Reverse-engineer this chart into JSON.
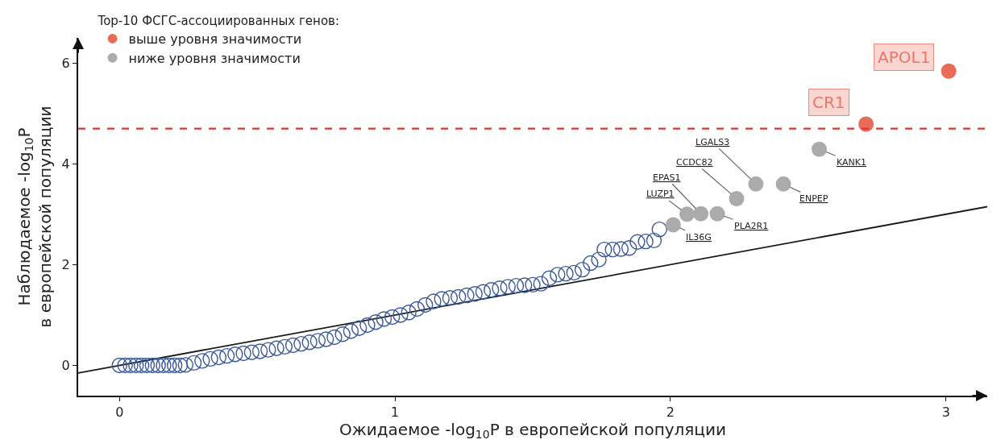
{
  "chart_data": {
    "type": "scatter",
    "xlabel": "Ожидаемое -log$_{10}$P в европейской популяции",
    "ylabel": "Наблюдаемое -log$_{10}$P\nв европейской популяции",
    "legend_title": "Top-10 ФСГС-ассоциированных генов:",
    "legend": "top left",
    "marker": "circle",
    "xlim": [
      -0.15,
      3.15
    ],
    "ylim": [
      -0.6,
      6.5
    ],
    "xticks": [
      0,
      1,
      2,
      3
    ],
    "yticks": [
      0,
      2,
      4,
      6
    ],
    "ref_lines": [
      {
        "axis": "y",
        "value": 4.7,
        "label": null,
        "color": "#e8332f",
        "line_style": "dashed"
      }
    ],
    "series": [
      {
        "type": "line",
        "marker": "none",
        "color": "#1a1a1a",
        "x": [
          -0.15,
          3.15
        ],
        "values": [
          -0.15,
          3.15
        ]
      },
      {
        "color": "#3b5998",
        "x": [
          0.0,
          0.02,
          0.04,
          0.06,
          0.08,
          0.1,
          0.12,
          0.14,
          0.16,
          0.18,
          0.2,
          0.22,
          0.24,
          0.27,
          0.3,
          0.33,
          0.36,
          0.39,
          0.42,
          0.45,
          0.48,
          0.51,
          0.54,
          0.57,
          0.6,
          0.63,
          0.66,
          0.69,
          0.72,
          0.75,
          0.78,
          0.81,
          0.84,
          0.87,
          0.9,
          0.93,
          0.96,
          0.99,
          1.02,
          1.05,
          1.08,
          1.11,
          1.14,
          1.17,
          1.2,
          1.23,
          1.26,
          1.29,
          1.32,
          1.35,
          1.38,
          1.41,
          1.44,
          1.47,
          1.5,
          1.53,
          1.56,
          1.59,
          1.62,
          1.65,
          1.68,
          1.71,
          1.74,
          1.76,
          1.79,
          1.82,
          1.85,
          1.88,
          1.91,
          1.94,
          1.96
        ],
        "values": [
          0.0,
          0.0,
          0.0,
          0.0,
          0.0,
          0.0,
          0.0,
          0.0,
          0.0,
          0.0,
          0.0,
          0.0,
          0.01,
          0.05,
          0.09,
          0.13,
          0.16,
          0.19,
          0.22,
          0.24,
          0.26,
          0.28,
          0.31,
          0.34,
          0.37,
          0.4,
          0.43,
          0.46,
          0.49,
          0.52,
          0.56,
          0.62,
          0.68,
          0.74,
          0.8,
          0.86,
          0.92,
          0.96,
          1.0,
          1.05,
          1.12,
          1.2,
          1.27,
          1.32,
          1.34,
          1.36,
          1.39,
          1.42,
          1.46,
          1.5,
          1.53,
          1.56,
          1.58,
          1.59,
          1.6,
          1.62,
          1.73,
          1.8,
          1.82,
          1.84,
          1.9,
          2.03,
          2.1,
          2.3,
          2.3,
          2.31,
          2.33,
          2.45,
          2.46,
          2.48,
          2.7
        ]
      },
      {
        "name": "выше уровня значимости",
        "color": "#eb6b59",
        "x": [
          3.01,
          2.71
        ],
        "values": [
          5.84,
          4.79
        ]
      },
      {
        "name": "ниже уровня значимости",
        "color": "#ababab",
        "x": [
          2.54,
          2.41,
          2.31,
          2.24,
          2.17,
          2.11,
          2.06,
          2.01
        ],
        "values": [
          4.29,
          3.6,
          3.6,
          3.31,
          3.01,
          3.01,
          3.0,
          2.79
        ]
      }
    ],
    "annotations": [
      {
        "text": "APOL1",
        "x": 3.01,
        "y": 5.84
      },
      {
        "text": "CR1",
        "x": 2.71,
        "y": 4.79
      },
      {
        "text": "KANK1",
        "x": 2.54,
        "y": 4.29
      },
      {
        "text": "ENPEP",
        "x": 2.41,
        "y": 3.6
      },
      {
        "text": "LGALS3",
        "x": 2.31,
        "y": 3.6
      },
      {
        "text": "CCDC82",
        "x": 2.24,
        "y": 3.31
      },
      {
        "text": "PLA2R1",
        "x": 2.17,
        "y": 3.01
      },
      {
        "text": "EPAS1",
        "x": 2.11,
        "y": 3.01
      },
      {
        "text": "LUZP1",
        "x": 2.06,
        "y": 3.0
      },
      {
        "text": "IL36G",
        "x": 2.01,
        "y": 2.79
      }
    ]
  }
}
